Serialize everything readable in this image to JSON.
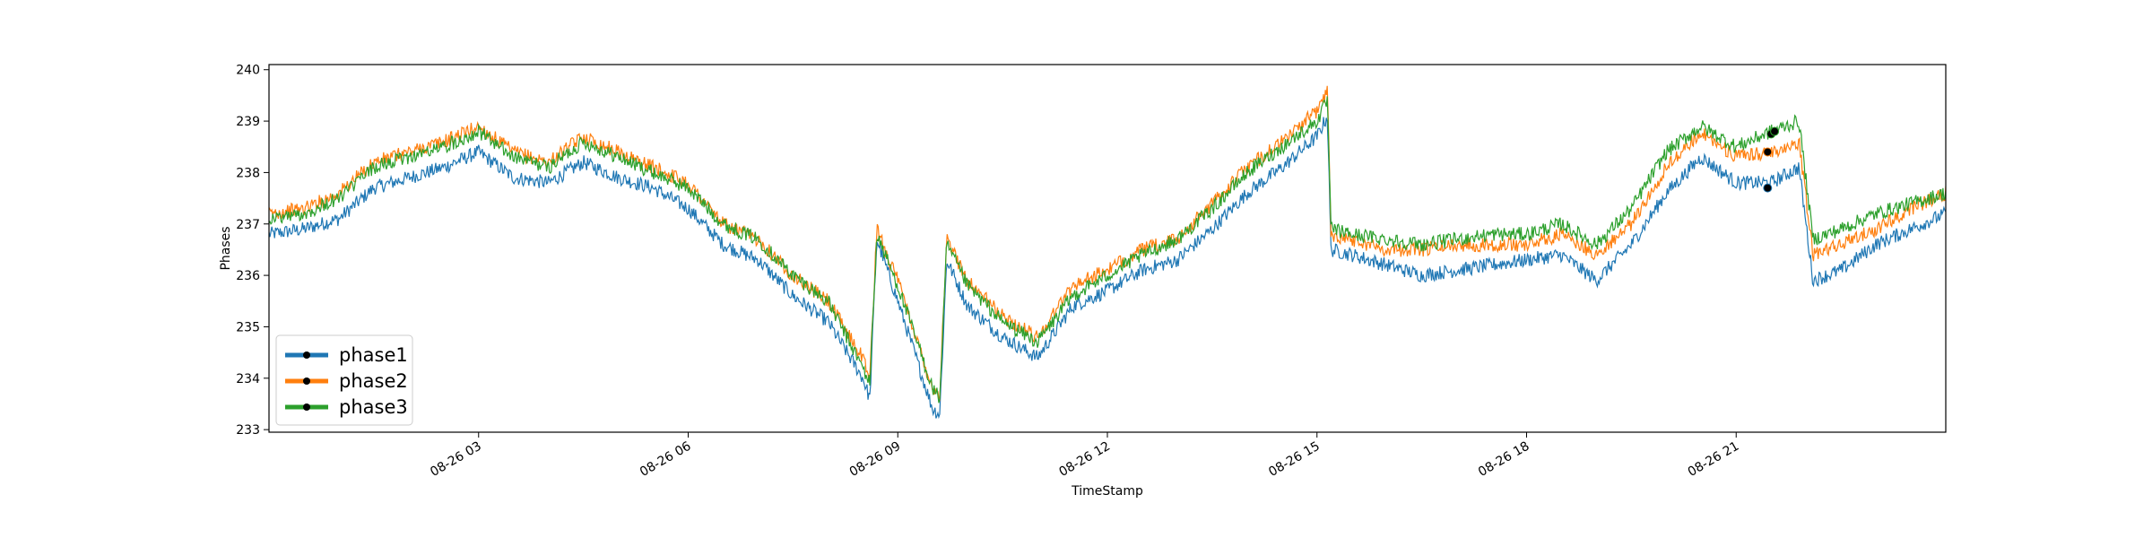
{
  "chart_data": {
    "type": "line",
    "title": "",
    "xlabel": "TimeStamp",
    "ylabel": "Phases",
    "xlim": [
      "08-26 00:00",
      "08-26 24:00"
    ],
    "ylim": [
      232.95,
      240.1
    ],
    "y_ticks": [
      233,
      234,
      235,
      236,
      237,
      238,
      239,
      240
    ],
    "x_ticks": [
      {
        "label": "08-26 03",
        "hour": 3
      },
      {
        "label": "08-26 06",
        "hour": 6
      },
      {
        "label": "08-26 09",
        "hour": 9
      },
      {
        "label": "08-26 12",
        "hour": 12
      },
      {
        "label": "08-26 15",
        "hour": 15
      },
      {
        "label": "08-26 18",
        "hour": 18
      },
      {
        "label": "08-26 21",
        "hour": 21
      }
    ],
    "grid": false,
    "legend": "lower-left",
    "x_hours": [
      0,
      0.5,
      1,
      1.5,
      2,
      2.5,
      3,
      3.5,
      4,
      4.5,
      5,
      5.5,
      6,
      6.5,
      7,
      7.5,
      8,
      8.5,
      8.6,
      8.7,
      9,
      9.5,
      9.6,
      9.7,
      10,
      10.5,
      11,
      11.5,
      12,
      12.5,
      13,
      13.5,
      14,
      14.5,
      15,
      15.15,
      15.2,
      15.5,
      16,
      16.5,
      17,
      17.5,
      18,
      18.5,
      19,
      19.5,
      20,
      20.5,
      21,
      21.5,
      21.9,
      22.1,
      22.5,
      23,
      23.5,
      24
    ],
    "series": [
      {
        "name": "phase1",
        "color": "#1f77b4",
        "values": [
          236.8,
          236.9,
          237.1,
          237.7,
          237.9,
          238.1,
          238.4,
          237.9,
          237.8,
          238.2,
          237.9,
          237.7,
          237.3,
          236.6,
          236.3,
          235.6,
          235.1,
          234.0,
          233.6,
          236.7,
          235.5,
          233.4,
          233.3,
          236.3,
          235.4,
          234.8,
          234.4,
          235.4,
          235.7,
          236.1,
          236.3,
          236.9,
          237.6,
          238.1,
          238.7,
          239.1,
          236.5,
          236.4,
          236.2,
          236.0,
          236.1,
          236.2,
          236.3,
          236.4,
          235.9,
          236.6,
          237.6,
          238.3,
          237.8,
          237.8,
          238.1,
          235.9,
          236.1,
          236.6,
          236.9,
          237.2
        ]
      },
      {
        "name": "phase2",
        "color": "#ff7f0e",
        "values": [
          237.2,
          237.3,
          237.6,
          238.2,
          238.4,
          238.6,
          238.9,
          238.4,
          238.2,
          238.7,
          238.4,
          238.1,
          237.8,
          237.0,
          236.7,
          236.0,
          235.5,
          234.4,
          234.0,
          236.9,
          235.9,
          233.8,
          233.7,
          236.7,
          235.9,
          235.2,
          234.8,
          235.8,
          236.1,
          236.5,
          236.7,
          237.4,
          238.1,
          238.6,
          239.2,
          239.6,
          236.8,
          236.7,
          236.5,
          236.5,
          236.6,
          236.6,
          236.6,
          236.8,
          236.4,
          237.0,
          238.1,
          238.8,
          238.3,
          238.4,
          238.6,
          236.4,
          236.6,
          236.9,
          237.3,
          237.6
        ]
      },
      {
        "name": "phase3",
        "color": "#2ca02c",
        "values": [
          237.1,
          237.2,
          237.5,
          238.1,
          238.3,
          238.5,
          238.8,
          238.3,
          238.1,
          238.6,
          238.3,
          238.0,
          237.7,
          237.0,
          236.7,
          236.0,
          235.5,
          234.2,
          233.9,
          236.8,
          235.8,
          233.8,
          233.6,
          236.6,
          235.8,
          235.1,
          234.7,
          235.6,
          236.0,
          236.4,
          236.7,
          237.3,
          238.0,
          238.5,
          239.0,
          239.4,
          236.9,
          236.8,
          236.7,
          236.6,
          236.7,
          236.8,
          236.8,
          237.0,
          236.6,
          237.3,
          238.4,
          238.9,
          238.5,
          238.8,
          239.0,
          236.7,
          236.9,
          237.2,
          237.4,
          237.6
        ]
      }
    ],
    "markers": [
      {
        "series": "phase1",
        "x_hour": 21.45,
        "y": 237.7
      },
      {
        "series": "phase2",
        "x_hour": 21.45,
        "y": 238.4
      },
      {
        "series": "phase3",
        "x_hour": 21.5,
        "y": 238.75
      },
      {
        "series": "phase3",
        "x_hour": 21.55,
        "y": 238.8
      }
    ]
  }
}
